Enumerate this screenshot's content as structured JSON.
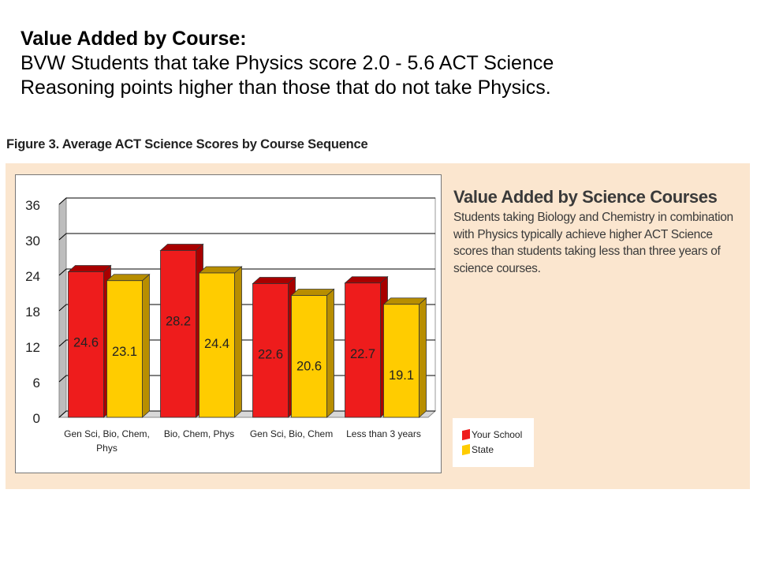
{
  "slide": {
    "heading": "Value Added by Course:",
    "line1": "BVW Students that take Physics score 2.0 - 5.6 ACT Science",
    "line2": "Reasoning points higher than those that do not take Physics."
  },
  "figure_title": "Figure 3. Average ACT Science Scores by Course Sequence",
  "sidebar": {
    "title": "Value Added by Science Courses",
    "body": "Students taking Biology and Chemistry in combination with Physics typically achieve higher ACT Science scores than students taking less than three years of science courses."
  },
  "legend": {
    "items": [
      {
        "label": "Your School",
        "color": "#ee1c1c"
      },
      {
        "label": "State",
        "color": "#ffcc00"
      }
    ]
  },
  "chart_data": {
    "type": "bar",
    "title": "Figure 3. Average ACT Science Scores by Course Sequence",
    "categories": [
      [
        "Gen Sci, Bio, Chem,",
        "Phys"
      ],
      [
        "Bio, Chem, Phys"
      ],
      [
        "Gen Sci, Bio, Chem"
      ],
      [
        "Less than 3 years"
      ]
    ],
    "series": [
      {
        "name": "Your School",
        "values": [
          24.6,
          28.2,
          22.6,
          22.7
        ],
        "color": "#ee1c1c",
        "side": "#a80000"
      },
      {
        "name": "State",
        "values": [
          23.1,
          24.4,
          20.6,
          19.1
        ],
        "color": "#ffcc00",
        "side": "#b88e00"
      }
    ],
    "yticks": [
      0,
      6,
      12,
      18,
      24,
      30,
      36
    ],
    "ylim": [
      0,
      36
    ],
    "grid": true,
    "legend_position": "right",
    "three_d": true
  }
}
